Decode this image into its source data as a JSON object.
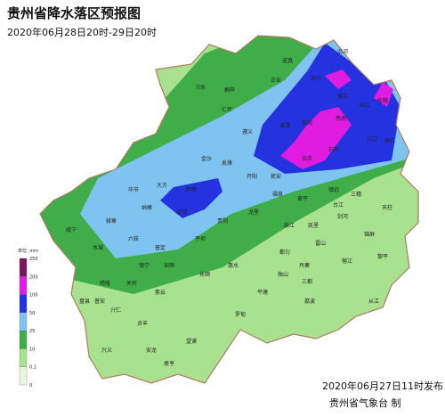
{
  "title": "贵州省降水落区预报图",
  "subtitle": "2020年06月28日20时-29日20时",
  "legend": {
    "unit": "单位: mm",
    "labels": [
      "0",
      "0.1",
      "10",
      "25",
      "50",
      "100",
      "200",
      "250"
    ],
    "colors": [
      "#eaf7df",
      "#a8e28f",
      "#3fae49",
      "#7fc3f0",
      "#2432e0",
      "#e01ce0",
      "#7a1560"
    ]
  },
  "places": [
    "习水",
    "桐梓",
    "正安",
    "道真",
    "务川",
    "沿河",
    "德江",
    "印江",
    "松桃",
    "思南",
    "江口",
    "铜仁",
    "遵义",
    "湄潭",
    "凤冈",
    "余庆",
    "石阡",
    "大方",
    "黔西",
    "金沙",
    "仁怀",
    "纳雍",
    "织金",
    "息烽",
    "开阳",
    "瓮安",
    "镇远",
    "三穗",
    "天柱",
    "毕节",
    "赫章",
    "威宁",
    "水城",
    "六枝",
    "普定",
    "安顺",
    "平坝",
    "贵阳",
    "龙里",
    "福泉",
    "黄平",
    "凯里",
    "剑河",
    "锦屏",
    "台江",
    "雷山",
    "麻江",
    "都匀",
    "丹寨",
    "榕江",
    "黎平",
    "从江",
    "三都",
    "独山",
    "荔波",
    "平塘",
    "惠水",
    "长顺",
    "罗甸",
    "紫云",
    "镇宁",
    "关岭",
    "晴隆",
    "普安",
    "盘县",
    "兴仁",
    "贞丰",
    "兴义",
    "安龙",
    "册亨",
    "望谟"
  ],
  "footer": {
    "date": "2020年06月27日11时发布",
    "org": "贵州省气象台 制"
  }
}
